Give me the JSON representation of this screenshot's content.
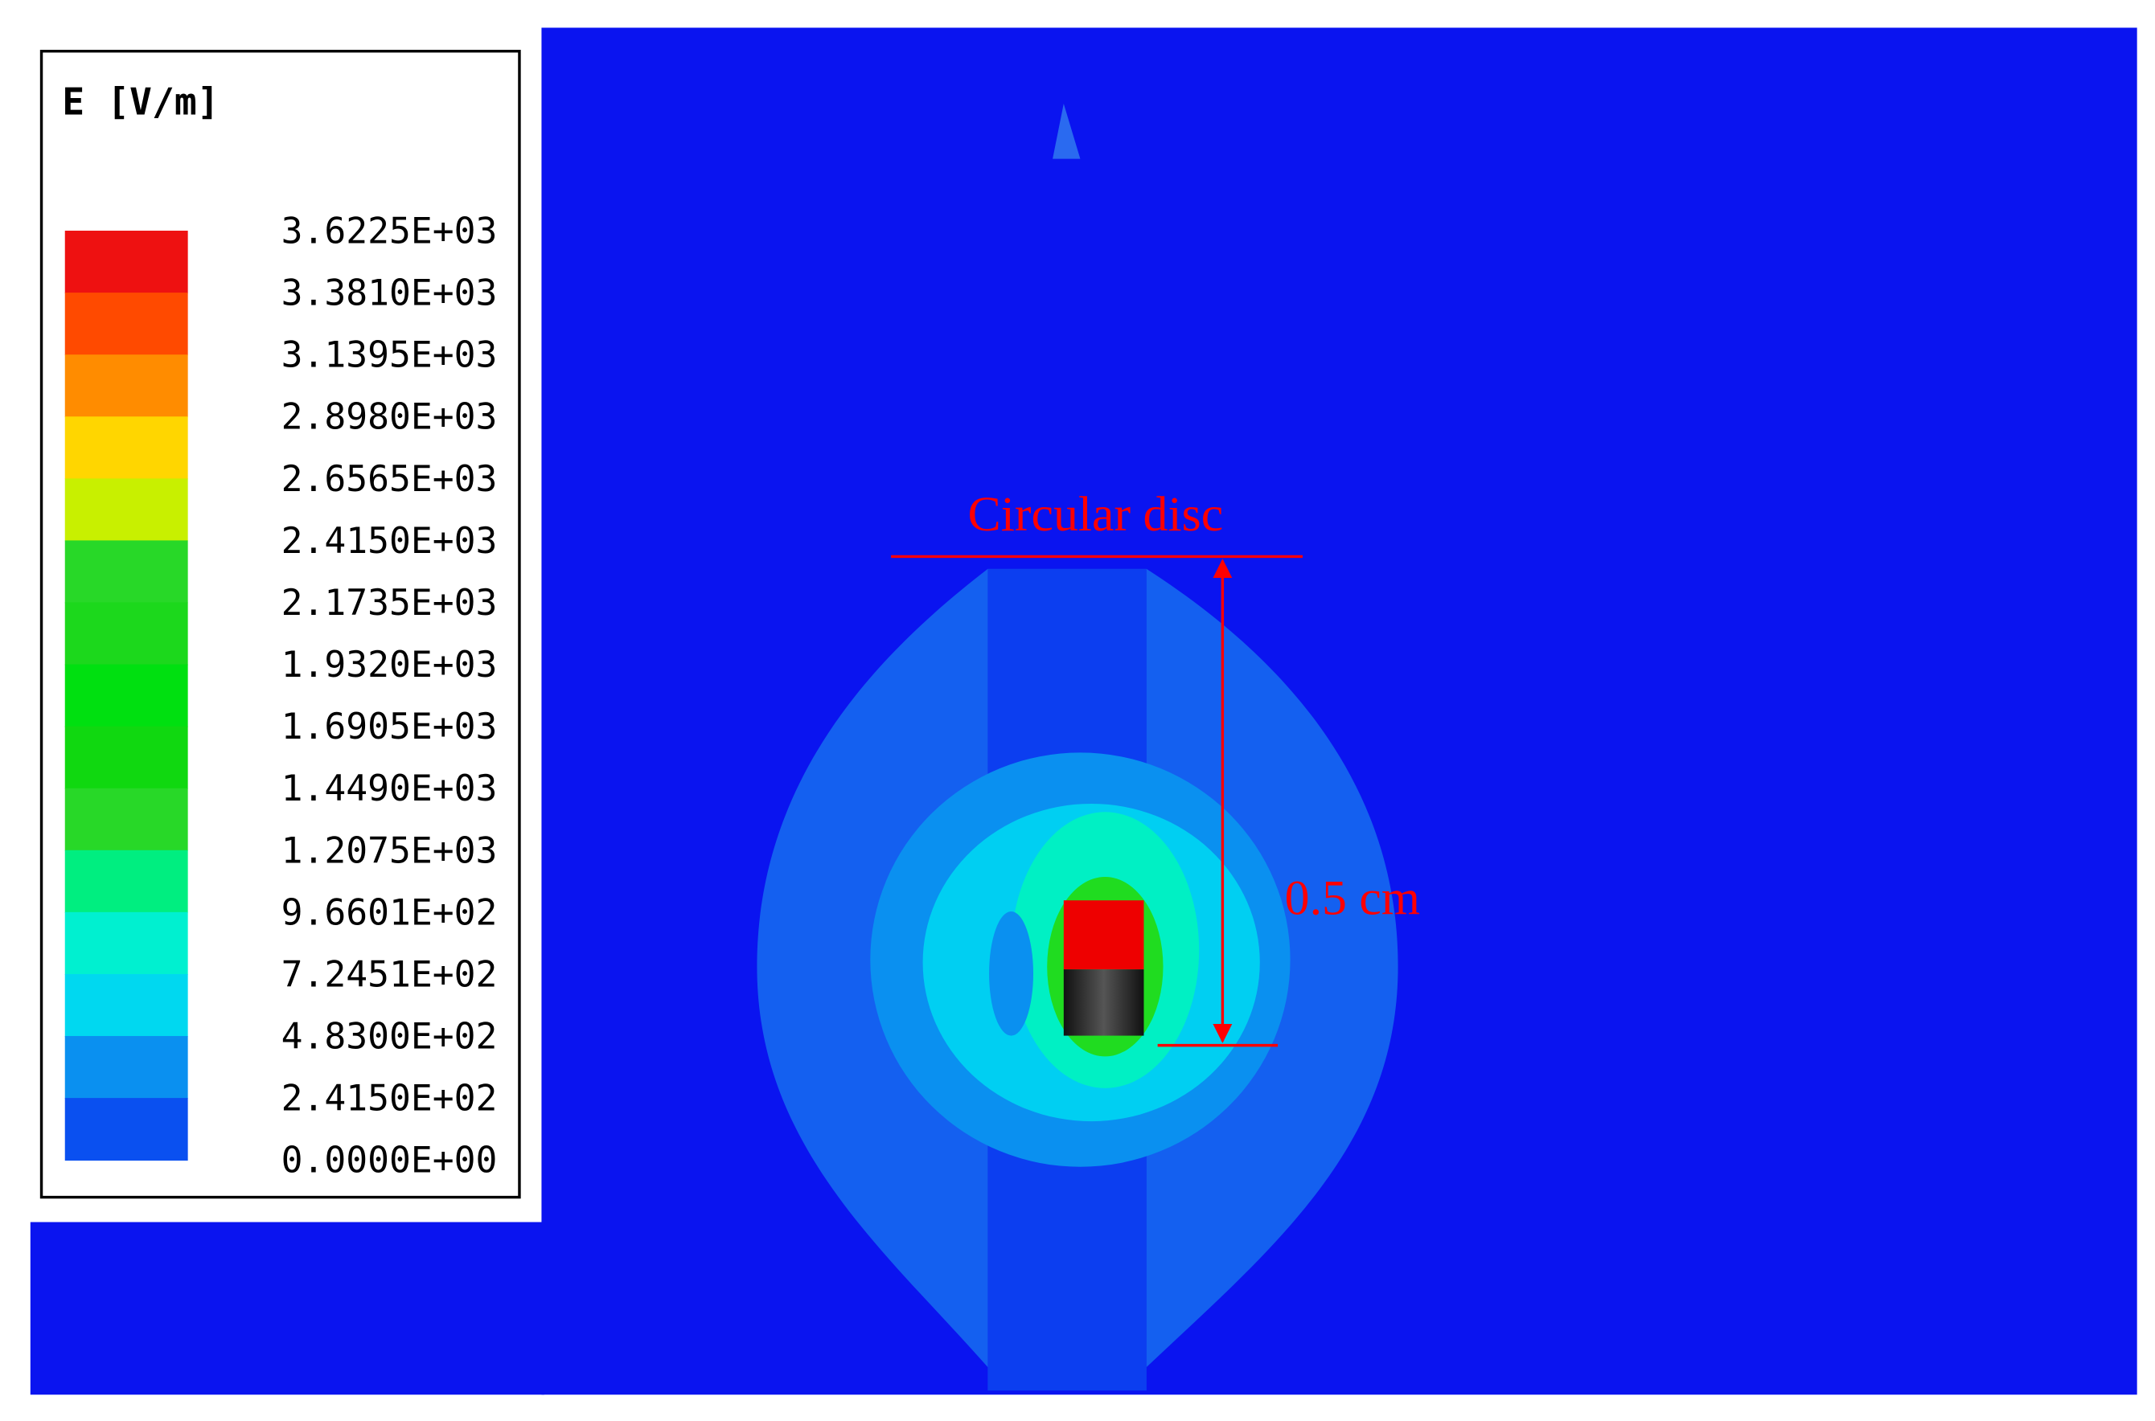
{
  "legend": {
    "title": "E [V/m]",
    "labels": [
      "3.6225E+03",
      "3.3810E+03",
      "3.1395E+03",
      "2.8980E+03",
      "2.6565E+03",
      "2.4150E+03",
      "2.1735E+03",
      "1.9320E+03",
      "1.6905E+03",
      "1.4490E+03",
      "1.2075E+03",
      "9.6601E+02",
      "7.2451E+02",
      "4.8300E+02",
      "2.4150E+02",
      "0.0000E+00"
    ]
  },
  "annotations": {
    "disc": "Circular disc",
    "distance": "0.5 cm"
  }
}
